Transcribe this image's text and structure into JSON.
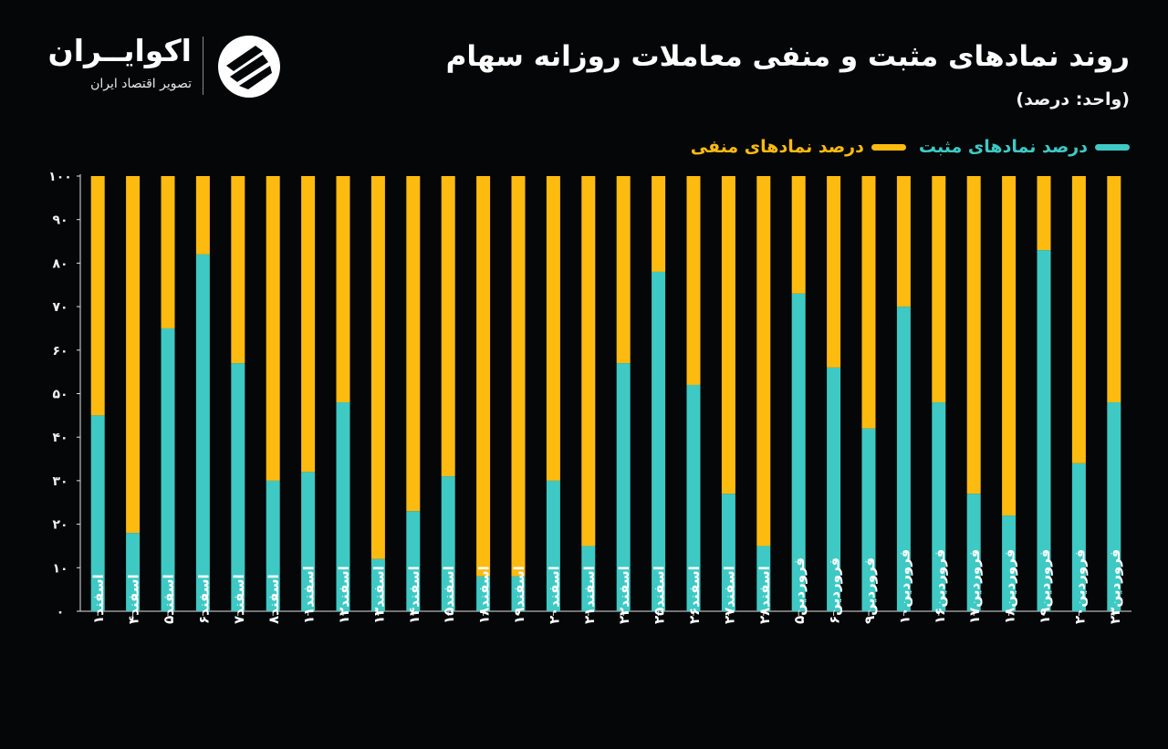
{
  "header": {
    "title": "روند نمادهای مثبت و منفی معاملات روزانه سهام",
    "subtitle": "(واحد: درصد)"
  },
  "brand": {
    "name": "اکوایــران",
    "tagline": "تصویر اقتصاد ایران",
    "logo_icon": "ecoiran-logo-icon"
  },
  "colors": {
    "positive": "#3ec9c5",
    "negative": "#fdbb10",
    "background": "#050607",
    "axis": "#e0e0e0"
  },
  "chart_data": {
    "type": "bar",
    "stacked": true,
    "title": "روند نمادهای مثبت و منفی معاملات روزانه سهام",
    "ylabel": "(واحد: درصد)",
    "ylim": [
      0,
      100
    ],
    "yticks": [
      "۰",
      "۱۰",
      "۲۰",
      "۳۰",
      "۴۰",
      "۵۰",
      "۶۰",
      "۷۰",
      "۸۰",
      "۹۰",
      "۱۰۰"
    ],
    "legend_position": "top-right",
    "categories": [
      "اسفند۱",
      "اسفند۴",
      "اسفند۵",
      "اسفند۶",
      "اسفند۷",
      "اسفند۸",
      "اسفند۱۱",
      "اسفند۱۲",
      "اسفند۱۳",
      "اسفند۱۴",
      "اسفند۱۵",
      "اسفند۱۸",
      "اسفند۱۹",
      "اسفند۲۰",
      "اسفند۲۱",
      "اسفند۲۲",
      "اسفند۲۵",
      "اسفند۲۶",
      "اسفند۲۷",
      "اسفند۲۸",
      "فروردین۵",
      "فروردین۶",
      "فروردین۹",
      "فروردین۱۰",
      "فروردین۱۶",
      "فروردین۱۷",
      "فروردین۱۸",
      "فروردین۱۹",
      "فروردین۲۰",
      "فروردین۲۳"
    ],
    "series": [
      {
        "name": "درصد نمادهای مثبت",
        "values": [
          45,
          18,
          65,
          82,
          57,
          30,
          32,
          48,
          12,
          23,
          31,
          8,
          8,
          30,
          15,
          57,
          78,
          52,
          27,
          15,
          73,
          56,
          42,
          70,
          48,
          27,
          22,
          83,
          34,
          48
        ]
      },
      {
        "name": "درصد نمادهای منفی",
        "values": [
          55,
          82,
          35,
          18,
          43,
          70,
          68,
          52,
          88,
          77,
          69,
          92,
          92,
          70,
          85,
          43,
          22,
          48,
          73,
          85,
          27,
          44,
          58,
          30,
          52,
          73,
          78,
          17,
          66,
          52
        ]
      }
    ]
  }
}
